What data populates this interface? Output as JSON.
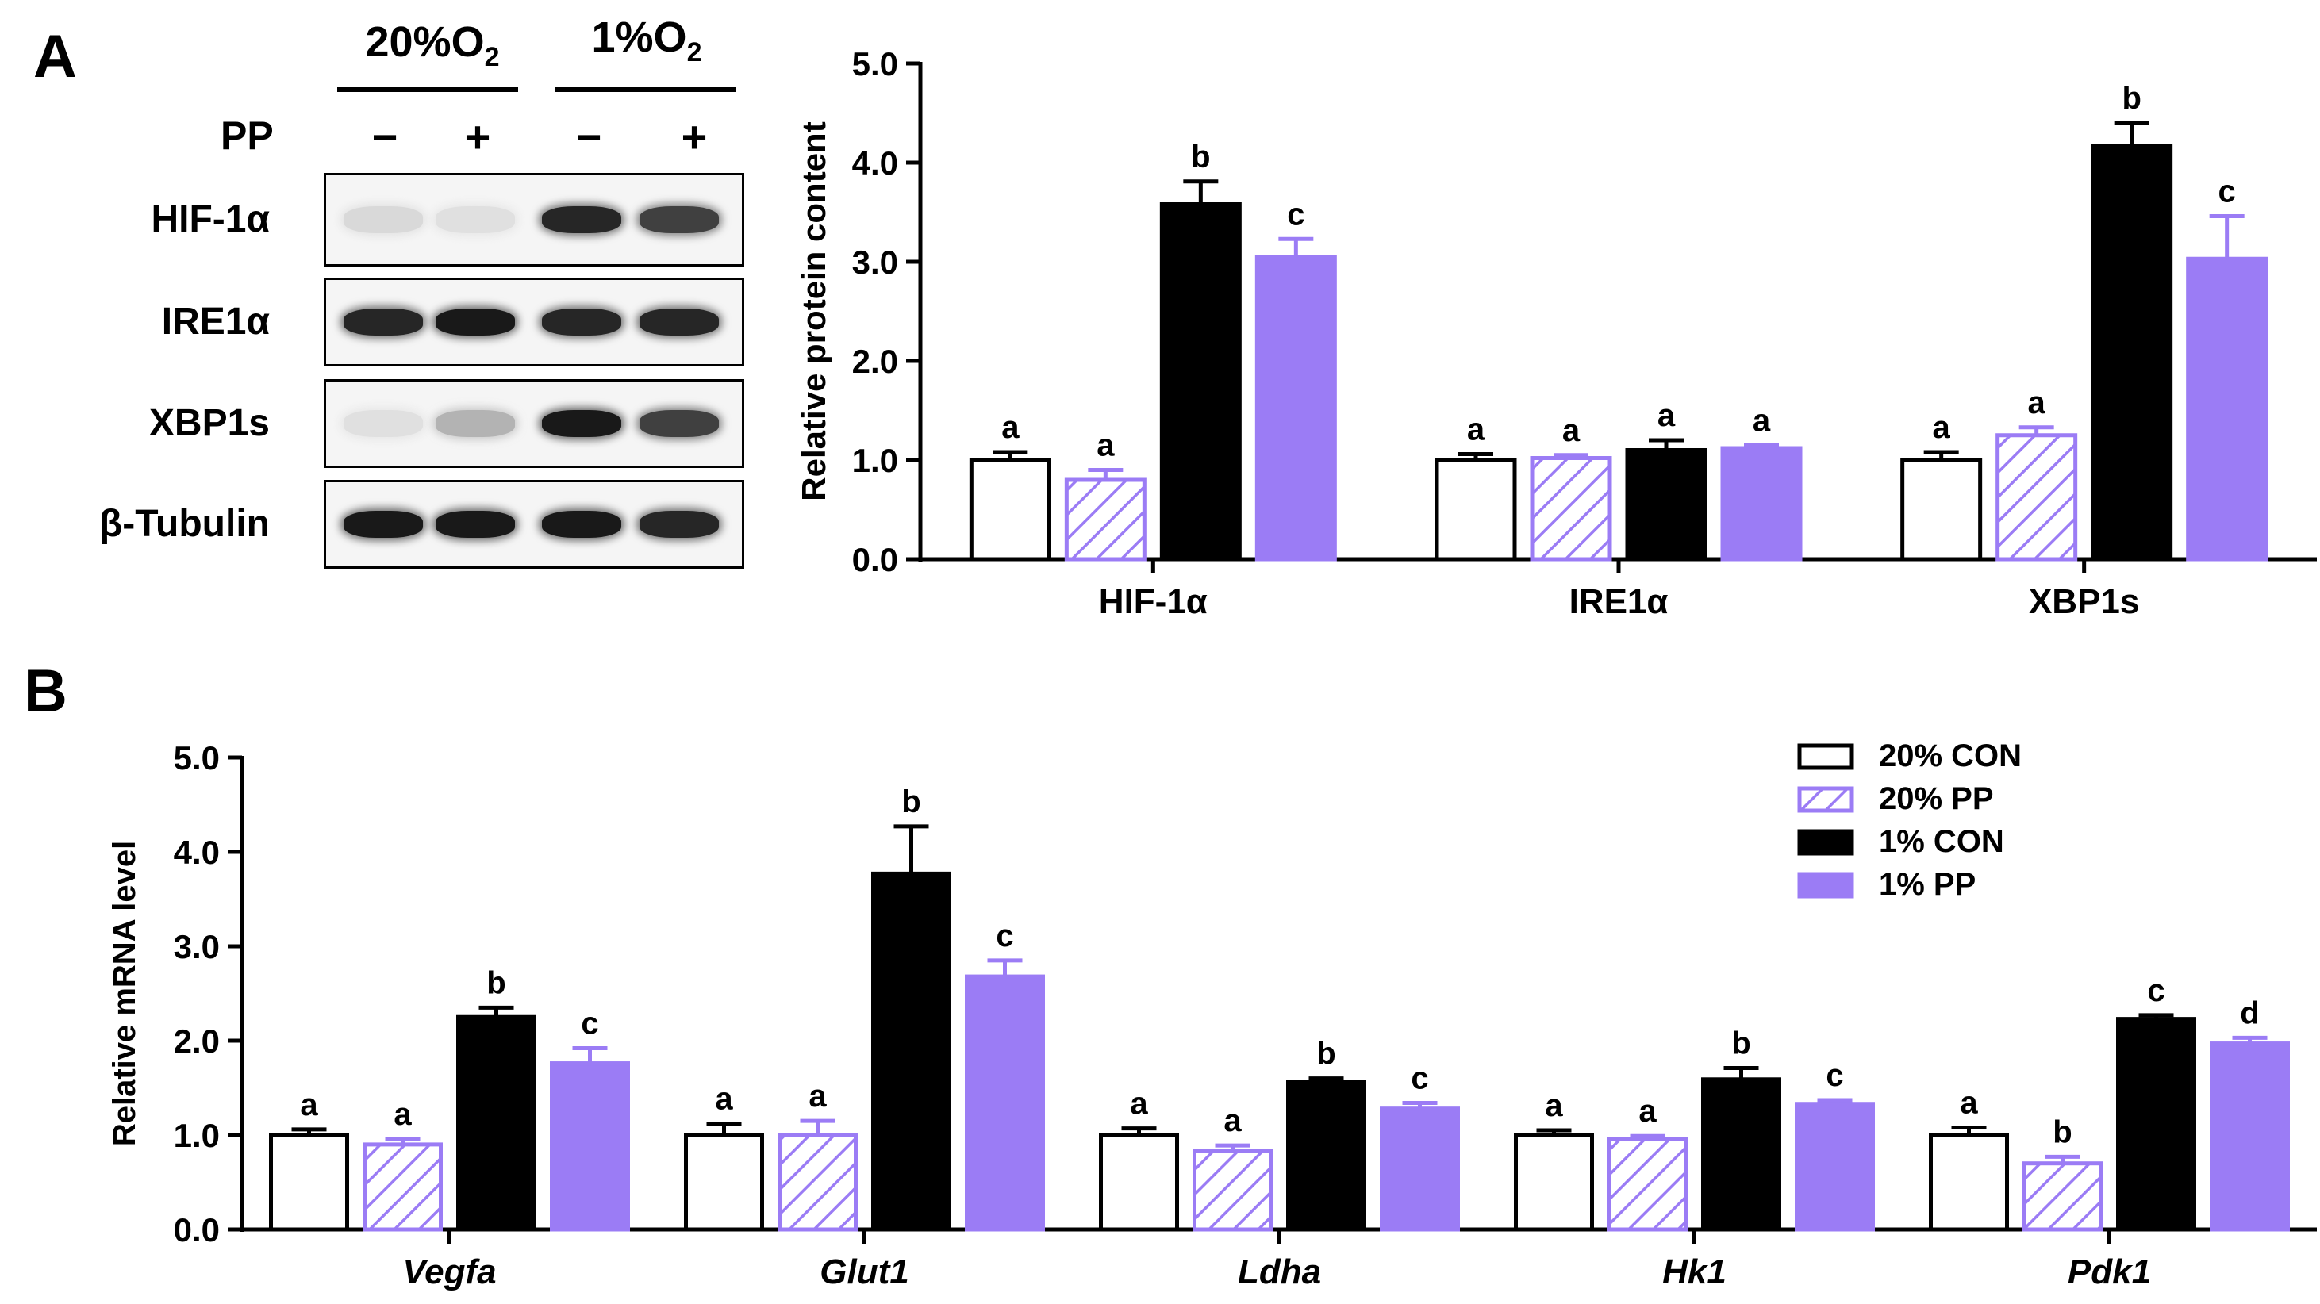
{
  "panels": {
    "a": "A",
    "b": "B"
  },
  "blot": {
    "conditions": [
      {
        "label": "20%O",
        "sub": "2"
      },
      {
        "label": "1%O",
        "sub": "2"
      }
    ],
    "pp_label": "PP",
    "signs": [
      "−",
      "+",
      "−",
      "+"
    ],
    "rows": [
      {
        "label": "HIF-1α",
        "intensity": [
          0.15,
          0.12,
          0.85,
          0.75
        ]
      },
      {
        "label": "IRE1α",
        "intensity": [
          0.85,
          0.9,
          0.85,
          0.85
        ]
      },
      {
        "label": "XBP1s",
        "intensity": [
          0.12,
          0.3,
          0.9,
          0.75
        ]
      },
      {
        "label": "β-Tubulin",
        "intensity": [
          0.9,
          0.9,
          0.9,
          0.85
        ]
      }
    ]
  },
  "colors": {
    "con20": "#ffffff",
    "pp20": "#9b7cf5",
    "con1": "#000000",
    "pp1": "#9b7cf5"
  },
  "chart_data": [
    {
      "type": "bar",
      "title": "",
      "xlabel": "",
      "ylabel": "Relative protein content",
      "ylim": [
        0,
        5
      ],
      "yticks": [
        "0.0",
        "1.0",
        "2.0",
        "3.0",
        "4.0",
        "5.0"
      ],
      "categories": [
        "HIF-1α",
        "IRE1α",
        "XBP1s"
      ],
      "series": [
        {
          "name": "20% CON",
          "values": [
            1.0,
            1.0,
            1.0
          ],
          "errors": [
            0.08,
            0.06,
            0.08
          ],
          "letters": [
            "a",
            "a",
            "a"
          ]
        },
        {
          "name": "20% PP",
          "values": [
            0.8,
            1.02,
            1.25
          ],
          "errors": [
            0.1,
            0.03,
            0.08
          ],
          "letters": [
            "a",
            "a",
            "a"
          ]
        },
        {
          "name": "1% CON",
          "values": [
            3.58,
            1.1,
            4.17
          ],
          "errors": [
            0.23,
            0.1,
            0.23
          ],
          "letters": [
            "b",
            "a",
            "b"
          ]
        },
        {
          "name": "1% PP",
          "values": [
            3.05,
            1.12,
            3.03
          ],
          "errors": [
            0.18,
            0.03,
            0.43
          ],
          "letters": [
            "c",
            "a",
            "c"
          ]
        }
      ]
    },
    {
      "type": "bar",
      "title": "",
      "xlabel": "",
      "ylabel": "Relative mRNA level",
      "ylim": [
        0,
        5
      ],
      "yticks": [
        "0.0",
        "1.0",
        "2.0",
        "3.0",
        "4.0",
        "5.0"
      ],
      "categories": [
        "Vegfa",
        "Glut1",
        "Ldha",
        "Hk1",
        "Pdk1"
      ],
      "series": [
        {
          "name": "20% CON",
          "values": [
            1.0,
            1.0,
            1.0,
            1.0,
            1.0
          ],
          "errors": [
            0.06,
            0.12,
            0.07,
            0.05,
            0.08
          ],
          "letters": [
            "a",
            "a",
            "a",
            "a",
            "a"
          ]
        },
        {
          "name": "20% PP",
          "values": [
            0.9,
            1.0,
            0.83,
            0.96,
            0.7
          ],
          "errors": [
            0.06,
            0.15,
            0.06,
            0.03,
            0.07
          ],
          "letters": [
            "a",
            "a",
            "a",
            "a",
            "b"
          ]
        },
        {
          "name": "1% CON",
          "values": [
            2.25,
            3.77,
            1.56,
            1.59,
            2.23
          ],
          "errors": [
            0.1,
            0.5,
            0.04,
            0.12,
            0.04
          ],
          "letters": [
            "b",
            "b",
            "b",
            "b",
            "c"
          ]
        },
        {
          "name": "1% PP",
          "values": [
            1.76,
            2.68,
            1.28,
            1.33,
            1.97
          ],
          "errors": [
            0.16,
            0.17,
            0.06,
            0.04,
            0.06
          ],
          "letters": [
            "c",
            "c",
            "c",
            "c",
            "d"
          ]
        }
      ],
      "legend": [
        "20% CON",
        "20% PP",
        "1% CON",
        "1% PP"
      ],
      "legend_position": "top-right"
    }
  ]
}
